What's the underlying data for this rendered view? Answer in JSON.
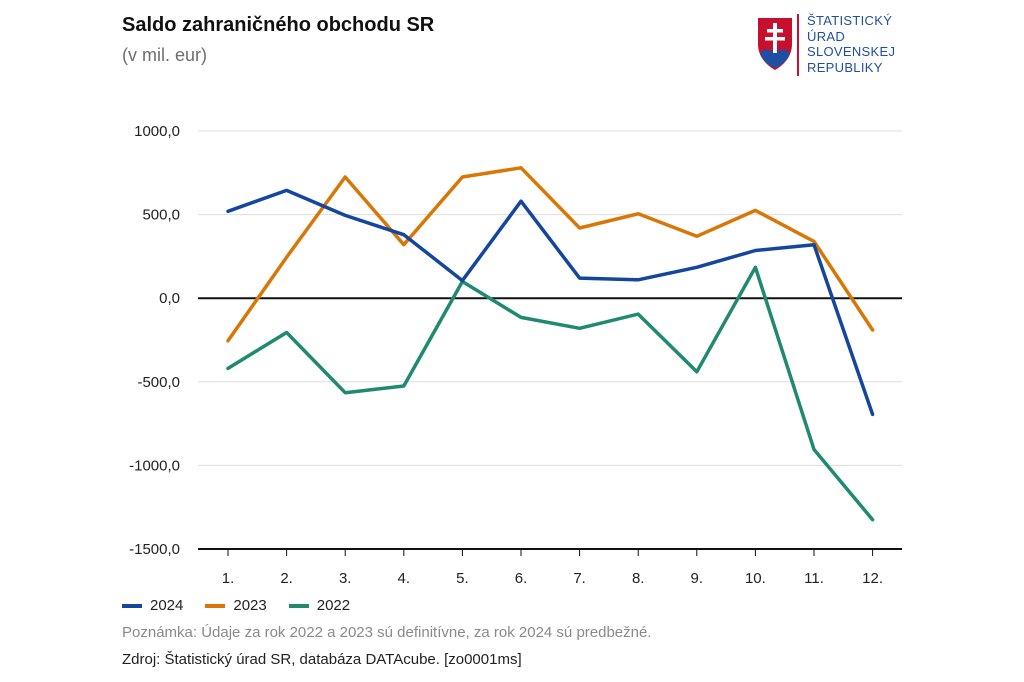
{
  "header": {
    "title": "Saldo zahraničného obchodu SR",
    "subtitle": "(v mil. eur)"
  },
  "logo": {
    "lines": [
      "ŠTATISTICKÝ",
      "ÚRAD",
      "SLOVENSKEJ",
      "REPUBLIKY"
    ],
    "text_color": "#1f4fa3",
    "accent_color": "#c8102e"
  },
  "chart_data": {
    "type": "line",
    "title": "Saldo zahraničného obchodu SR",
    "subtitle": "(v mil. eur)",
    "xlabel": "",
    "ylabel": "",
    "categories": [
      "1.",
      "2.",
      "3.",
      "4.",
      "5.",
      "6.",
      "7.",
      "8.",
      "9.",
      "10.",
      "11.",
      "12."
    ],
    "ylim": [
      -1500,
      1000
    ],
    "yticks": [
      1000,
      500,
      0,
      -500,
      -1000,
      -1500
    ],
    "ytick_labels": [
      "1000,0",
      "500,0",
      "0,0",
      "-500,0",
      "-1000,0",
      "-1500,0"
    ],
    "grid": true,
    "legend_position": "bottom-left",
    "series": [
      {
        "name": "2024",
        "color": "#1446a0",
        "values": [
          520,
          645,
          495,
          380,
          105,
          580,
          120,
          110,
          185,
          285,
          320,
          -695
        ]
      },
      {
        "name": "2023",
        "color": "#d97706",
        "values": [
          -255,
          245,
          725,
          320,
          725,
          780,
          420,
          505,
          370,
          525,
          340,
          -190
        ]
      },
      {
        "name": "2022",
        "color": "#1f8a70",
        "values": [
          -420,
          -205,
          -565,
          -525,
          100,
          -115,
          -180,
          -95,
          -440,
          185,
          -905,
          -1325
        ]
      }
    ]
  },
  "footer": {
    "note": "Poznámka: Údaje za rok 2022 a 2023 sú definitívne, za rok 2024 sú predbežné.",
    "source": "Zdroj: Štatistický úrad SR, databáza DATAcube. [zo0001ms]"
  }
}
